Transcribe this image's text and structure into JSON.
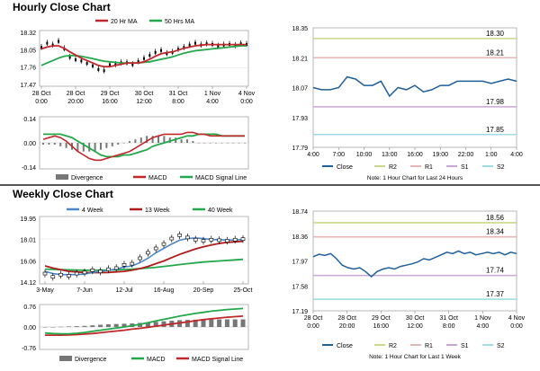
{
  "sections": {
    "hourly_title": "Hourly Close Chart",
    "weekly_title": "Weekly Close Chart"
  },
  "colors": {
    "close": "#1f5f9a",
    "ma_short": "#c0282a",
    "ma_long": "#22a84a",
    "macd": "#c0282a",
    "signal": "#22a84a",
    "divergence": "#777777",
    "r2": "#c8d88c",
    "r1": "#e8b4b4",
    "s1": "#c9a6d6",
    "s2": "#9fdde6",
    "weekly_ma4": "#4a86c8",
    "weekly_ma13": "#b01c1c",
    "weekly_ma40": "#22a84a",
    "candle": "#000000"
  },
  "chart_data": [
    {
      "id": "hourly_price",
      "type": "line",
      "legend": [
        {
          "name": "20 Hr MA",
          "color": "#c0282a"
        },
        {
          "name": "50 Hrs MA",
          "color": "#22a84a"
        }
      ],
      "xticks": [
        "28 Oct\n0:00",
        "28 Oct\n20:00",
        "29 Oct\n16:00",
        "30 Oct\n12:00",
        "31 Oct\n8:00",
        "1 Nov\n4:00",
        "4 Nov\n0:00"
      ],
      "yticks": [
        "18.32",
        "18.05",
        "17.76",
        "17.47"
      ],
      "ylim": [
        17.47,
        18.32
      ],
      "series": [
        {
          "role": "close",
          "values": [
            18.08,
            18.15,
            18.12,
            18.18,
            18.06,
            17.92,
            17.88,
            17.86,
            17.82,
            17.78,
            17.72,
            17.7,
            17.8,
            17.8,
            17.83,
            17.83,
            17.8,
            17.85,
            17.9,
            17.95,
            18.0,
            18.03,
            17.98,
            18.0,
            18.05,
            18.08,
            18.12,
            18.15,
            18.12,
            18.14,
            18.13,
            18.1,
            18.12,
            18.13,
            18.11,
            18.14,
            18.13
          ]
        },
        {
          "role": "ma20",
          "values": [
            18.05,
            18.08,
            18.1,
            18.1,
            18.06,
            18.0,
            17.95,
            17.9,
            17.86,
            17.82,
            17.78,
            17.76,
            17.76,
            17.78,
            17.8,
            17.82,
            17.82,
            17.82,
            17.84,
            17.88,
            17.93,
            17.97,
            17.99,
            18.0,
            18.03,
            18.06,
            18.08,
            18.1,
            18.11,
            18.12,
            18.12,
            18.12,
            18.12,
            18.12,
            18.12,
            18.12,
            18.12
          ]
        },
        {
          "role": "ma50",
          "values": [
            17.78,
            17.82,
            17.86,
            17.9,
            17.93,
            17.94,
            17.94,
            17.93,
            17.91,
            17.89,
            17.87,
            17.85,
            17.84,
            17.83,
            17.82,
            17.82,
            17.82,
            17.82,
            17.83,
            17.84,
            17.86,
            17.88,
            17.9,
            17.92,
            17.95,
            17.98,
            18.0,
            18.02,
            18.03,
            18.04,
            18.05,
            18.06,
            18.07,
            18.08,
            18.09,
            18.1,
            18.1
          ]
        }
      ]
    },
    {
      "id": "hourly_macd",
      "type": "line",
      "legend": [
        {
          "name": "Divergence",
          "color": "#777777"
        },
        {
          "name": "MACD",
          "color": "#c0282a"
        },
        {
          "name": "MACD Signal Line",
          "color": "#22a84a"
        }
      ],
      "yticks": [
        "0.14",
        "0.00",
        "-0.14"
      ],
      "ylim": [
        -0.14,
        0.14
      ],
      "series": [
        {
          "role": "macd",
          "values": [
            0.02,
            0.03,
            0.04,
            0.03,
            0.01,
            -0.02,
            -0.05,
            -0.07,
            -0.09,
            -0.1,
            -0.1,
            -0.09,
            -0.08,
            -0.07,
            -0.06,
            -0.05,
            -0.03,
            -0.01,
            0.01,
            0.03,
            0.04,
            0.05,
            0.05,
            0.05,
            0.05,
            0.06,
            0.06,
            0.05,
            0.05,
            0.04,
            0.04,
            0.04,
            0.04,
            0.04,
            0.04,
            0.04
          ]
        },
        {
          "role": "signal",
          "values": [
            0.05,
            0.05,
            0.05,
            0.05,
            0.04,
            0.03,
            0.01,
            -0.01,
            -0.03,
            -0.05,
            -0.07,
            -0.08,
            -0.08,
            -0.08,
            -0.07,
            -0.07,
            -0.06,
            -0.05,
            -0.04,
            -0.02,
            -0.01,
            0.0,
            0.01,
            0.02,
            0.03,
            0.04,
            0.04,
            0.05,
            0.05,
            0.05,
            0.05,
            0.04,
            0.04,
            0.04,
            0.04,
            0.04
          ]
        },
        {
          "role": "divergence",
          "values": [
            -0.01,
            -0.01,
            -0.01,
            -0.02,
            -0.03,
            -0.04,
            -0.05,
            -0.05,
            -0.05,
            -0.05,
            -0.04,
            -0.03,
            -0.02,
            -0.01,
            0.0,
            0.01,
            0.02,
            0.03,
            0.04,
            0.04,
            0.04,
            0.04,
            0.03,
            0.03,
            0.02,
            0.02,
            0.01,
            0.0,
            0.0,
            0.0,
            0.0,
            0.0,
            0.0,
            0.0,
            0.0,
            0.0
          ]
        }
      ]
    },
    {
      "id": "hourly_24h",
      "type": "line",
      "xticks": [
        "4:00",
        "7:00",
        "10:00",
        "13:00",
        "16:00",
        "19:00",
        "22:00",
        "1:00",
        "4:00"
      ],
      "yticks": [
        "18.35",
        "18.21",
        "18.07",
        "17.93",
        "17.79"
      ],
      "ylim": [
        17.79,
        18.35
      ],
      "levels": [
        {
          "name": "R2",
          "value": 18.3,
          "label": "18.30",
          "color": "#c8d88c"
        },
        {
          "name": "R1",
          "value": 18.21,
          "label": "18.21",
          "color": "#e8b4b4"
        },
        {
          "name": "S1",
          "value": 17.98,
          "label": "17.98",
          "color": "#c9a6d6"
        },
        {
          "name": "S2",
          "value": 17.85,
          "label": "17.85",
          "color": "#9fdde6"
        }
      ],
      "series": [
        {
          "name": "Close",
          "values": [
            18.07,
            18.06,
            18.06,
            18.07,
            18.12,
            18.11,
            18.08,
            18.08,
            18.1,
            18.03,
            18.07,
            18.06,
            18.08,
            18.05,
            18.06,
            18.08,
            18.08,
            18.1,
            18.1,
            18.1,
            18.1,
            18.09,
            18.1,
            18.11,
            18.1
          ]
        }
      ],
      "legend": [
        {
          "name": "Close",
          "color": "#1f5f9a"
        },
        {
          "name": "R2",
          "color": "#c8d88c"
        },
        {
          "name": "R1",
          "color": "#e8b4b4"
        },
        {
          "name": "S1",
          "color": "#c9a6d6"
        },
        {
          "name": "S2",
          "color": "#9fdde6"
        }
      ],
      "note": "Note: 1 Hour Chart for Last 24 Hours"
    },
    {
      "id": "weekly_price",
      "type": "line",
      "legend": [
        {
          "name": "4 Week",
          "color": "#4a86c8"
        },
        {
          "name": "13 Week",
          "color": "#b01c1c"
        },
        {
          "name": "40 Week",
          "color": "#22a84a"
        }
      ],
      "xticks": [
        "3-May",
        "7-Jun",
        "12-Jul",
        "16-Aug",
        "20-Sep",
        "25-Oct"
      ],
      "yticks": [
        "19.95",
        "18.01",
        "16.06",
        "14.12"
      ],
      "ylim": [
        14.12,
        19.95
      ],
      "series": [
        {
          "role": "candles",
          "values": [
            14.9,
            14.6,
            14.8,
            14.7,
            14.9,
            15.0,
            15.2,
            15.1,
            15.3,
            15.4,
            15.7,
            15.8,
            16.3,
            16.8,
            17.2,
            17.6,
            18.1,
            18.4,
            18.2,
            18.0,
            17.9,
            18.0,
            17.95,
            17.9,
            18.0,
            18.05
          ]
        },
        {
          "role": "ma4",
          "values": [
            15.1,
            14.9,
            14.8,
            14.8,
            14.8,
            14.85,
            15.0,
            15.1,
            15.2,
            15.3,
            15.5,
            15.6,
            15.9,
            16.3,
            16.8,
            17.2,
            17.6,
            17.95,
            18.1,
            18.15,
            18.1,
            18.0,
            18.0,
            17.95,
            17.97,
            18.0
          ]
        },
        {
          "role": "ma13",
          "values": [
            15.6,
            15.4,
            15.25,
            15.1,
            15.05,
            15.0,
            14.98,
            14.98,
            15.0,
            15.05,
            15.1,
            15.2,
            15.35,
            15.55,
            15.8,
            16.05,
            16.35,
            16.65,
            16.9,
            17.15,
            17.35,
            17.5,
            17.65,
            17.75,
            17.8,
            17.85
          ]
        },
        {
          "role": "ma40",
          "values": [
            15.3,
            15.28,
            15.26,
            15.24,
            15.22,
            15.2,
            15.2,
            15.2,
            15.22,
            15.24,
            15.27,
            15.3,
            15.35,
            15.4,
            15.47,
            15.55,
            15.63,
            15.72,
            15.8,
            15.88,
            15.95,
            16.0,
            16.05,
            16.1,
            16.15,
            16.2
          ]
        }
      ]
    },
    {
      "id": "weekly_macd",
      "type": "line",
      "legend": [
        {
          "name": "Divergence",
          "color": "#777777"
        },
        {
          "name": "MACD",
          "color": "#22a84a"
        },
        {
          "name": "MACD Signal Line",
          "color": "#c0282a"
        }
      ],
      "yticks": [
        "0.76",
        "0.00",
        "-0.76"
      ],
      "ylim": [
        -0.76,
        0.76
      ],
      "series": [
        {
          "role": "macd",
          "values": [
            -0.22,
            -0.24,
            -0.25,
            -0.25,
            -0.23,
            -0.2,
            -0.16,
            -0.12,
            -0.08,
            -0.04,
            0.0,
            0.05,
            0.1,
            0.16,
            0.22,
            0.28,
            0.34,
            0.4,
            0.45,
            0.5,
            0.54,
            0.58,
            0.61,
            0.64,
            0.66,
            0.68
          ]
        },
        {
          "role": "signal",
          "values": [
            -0.3,
            -0.3,
            -0.3,
            -0.29,
            -0.28,
            -0.26,
            -0.24,
            -0.21,
            -0.18,
            -0.15,
            -0.12,
            -0.08,
            -0.05,
            -0.01,
            0.03,
            0.07,
            0.11,
            0.15,
            0.19,
            0.23,
            0.27,
            0.3,
            0.33,
            0.36,
            0.38,
            0.4
          ]
        },
        {
          "role": "divergence",
          "values": [
            0.0,
            0.0,
            0.01,
            0.02,
            0.03,
            0.04,
            0.06,
            0.08,
            0.1,
            0.11,
            0.12,
            0.13,
            0.15,
            0.17,
            0.19,
            0.21,
            0.23,
            0.25,
            0.26,
            0.27,
            0.27,
            0.28,
            0.28,
            0.28,
            0.28,
            0.28
          ]
        }
      ]
    },
    {
      "id": "weekly_1w",
      "type": "line",
      "xticks": [
        "28 Oct\n0:00",
        "28 Oct\n20:00",
        "29 Oct\n16:00",
        "30 Oct\n12:00",
        "31 Oct\n8:00",
        "1 Nov\n4:00",
        "4 Nov\n0:00"
      ],
      "yticks": [
        "18.74",
        "18.36",
        "17.97",
        "17.58",
        "17.19"
      ],
      "ylim": [
        17.19,
        18.74
      ],
      "levels": [
        {
          "name": "R2",
          "value": 18.56,
          "label": "18.56",
          "color": "#c8d88c"
        },
        {
          "name": "R1",
          "value": 18.34,
          "label": "18.34",
          "color": "#e8b4b4"
        },
        {
          "name": "S1",
          "value": 17.74,
          "label": "17.74",
          "color": "#c9a6d6"
        },
        {
          "name": "S2",
          "value": 17.37,
          "label": "17.37",
          "color": "#9fdde6"
        }
      ],
      "series": [
        {
          "name": "Close",
          "values": [
            18.03,
            18.07,
            18.05,
            18.08,
            18.0,
            17.9,
            17.86,
            17.84,
            17.86,
            17.8,
            17.72,
            17.8,
            17.84,
            17.86,
            17.84,
            17.88,
            17.9,
            17.92,
            17.95,
            18.0,
            17.98,
            18.02,
            18.06,
            18.1,
            18.08,
            18.12,
            18.08,
            18.1,
            18.06,
            18.08,
            18.1,
            18.08,
            18.1,
            18.06,
            18.1,
            18.08
          ]
        }
      ],
      "legend": [
        {
          "name": "Close",
          "color": "#1f5f9a"
        },
        {
          "name": "R2",
          "color": "#c8d88c"
        },
        {
          "name": "R1",
          "color": "#e8b4b4"
        },
        {
          "name": "S1",
          "color": "#c9a6d6"
        },
        {
          "name": "S2",
          "color": "#9fdde6"
        }
      ],
      "note": "Note: 1 Hour Chart for Last 1 Week"
    }
  ]
}
